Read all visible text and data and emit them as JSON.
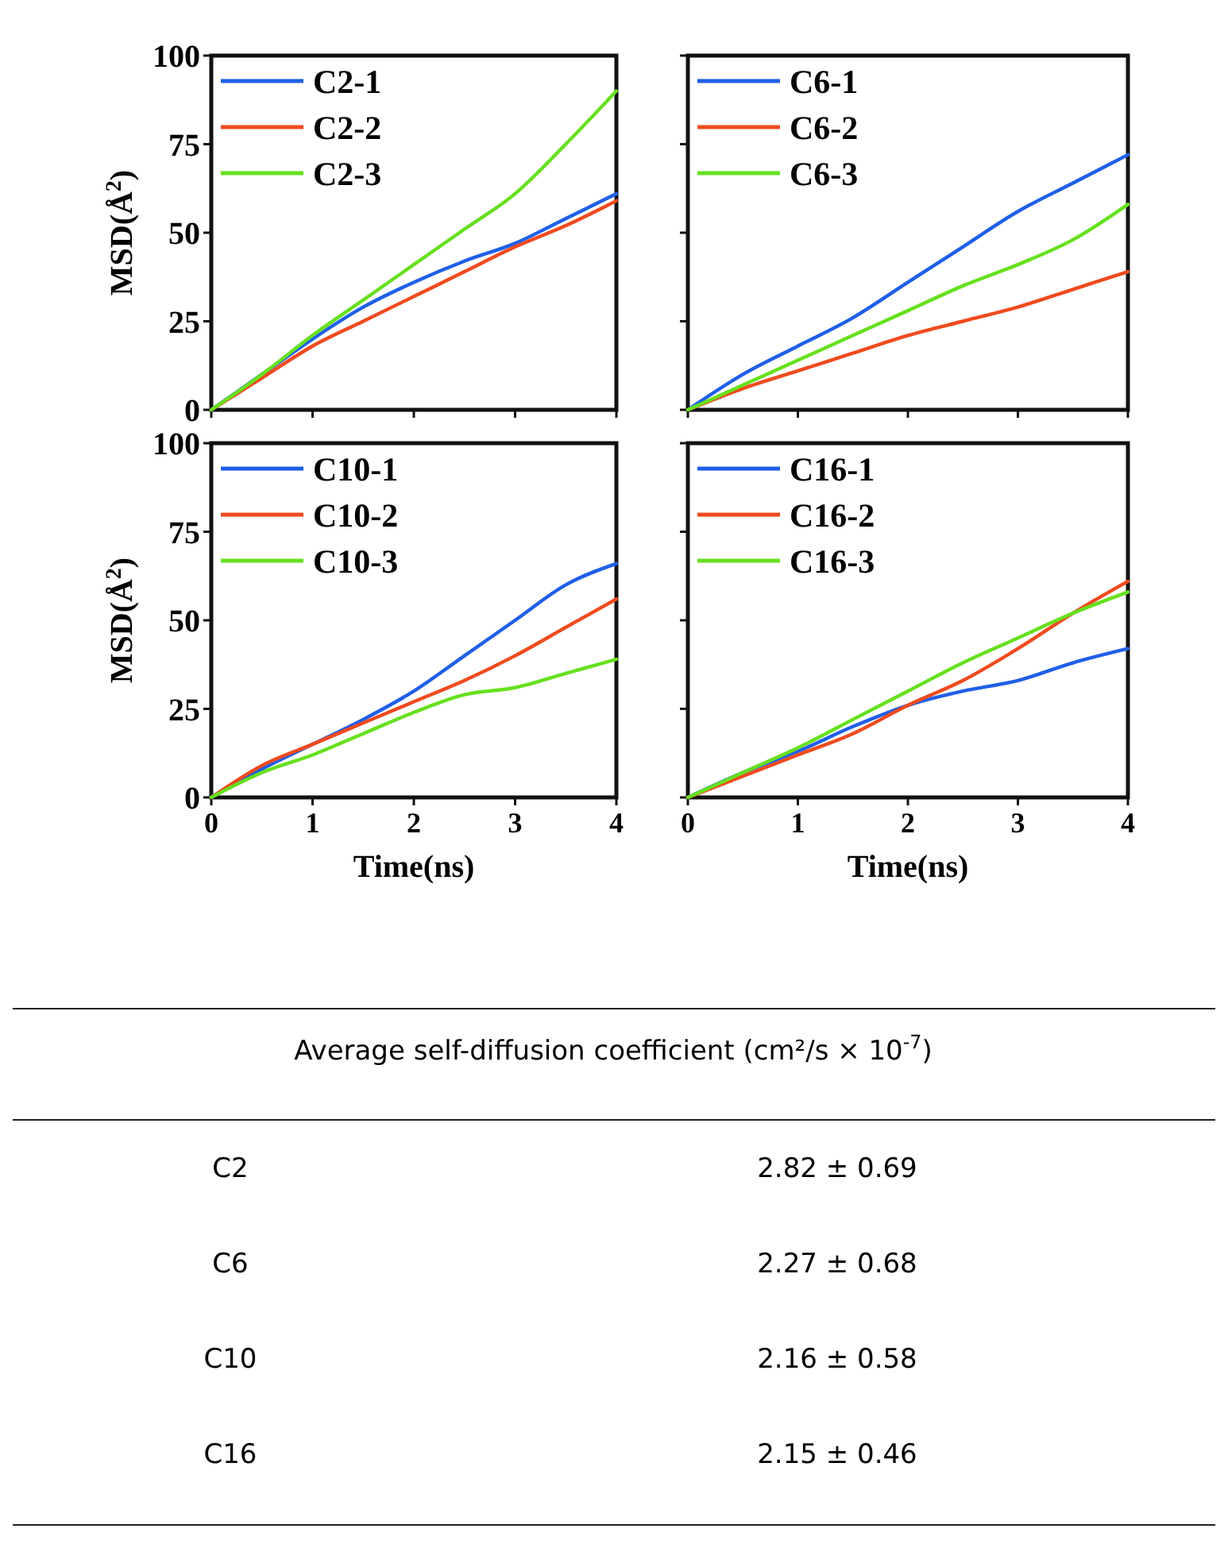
{
  "chart_data": [
    {
      "type": "line",
      "ylabel": "MSD(Å$^{2}$)",
      "x": [
        0,
        0.5,
        1,
        1.5,
        2,
        2.5,
        3,
        3.5,
        4
      ],
      "xlim": [
        0,
        4
      ],
      "xticks": [
        0,
        1,
        2,
        3,
        4
      ],
      "ylim": [
        0,
        100
      ],
      "yticks": [
        0,
        25,
        50,
        75,
        100
      ],
      "tick_labels": "y",
      "legend": "top left",
      "line_style": "solid",
      "series": [
        {
          "name": "C2-1",
          "color": "#1f5fe8",
          "values": [
            0,
            10,
            20,
            29,
            36,
            42,
            47,
            54,
            61
          ]
        },
        {
          "name": "C2-2",
          "color": "#f04a1e",
          "values": [
            0,
            9,
            18,
            25,
            32,
            39,
            46,
            52,
            59
          ]
        },
        {
          "name": "C2-3",
          "color": "#66e01e",
          "values": [
            0,
            10,
            21,
            31,
            41,
            51,
            61,
            75,
            90
          ]
        }
      ]
    },
    {
      "type": "line",
      "x": [
        0,
        0.5,
        1,
        1.5,
        2,
        2.5,
        3,
        3.5,
        4
      ],
      "xlim": [
        0,
        4
      ],
      "xticks": [
        0,
        1,
        2,
        3,
        4
      ],
      "ylim": [
        0,
        100
      ],
      "yticks": [
        0,
        25,
        50,
        75,
        100
      ],
      "tick_labels": false,
      "legend": "top left",
      "line_style": "solid",
      "series": [
        {
          "name": "C6-1",
          "color": "#1f5fe8",
          "values": [
            0,
            10,
            18,
            26,
            36,
            46,
            56,
            64,
            72
          ]
        },
        {
          "name": "C6-2",
          "color": "#f04a1e",
          "values": [
            0,
            6,
            11,
            16,
            21,
            25,
            29,
            34,
            39
          ]
        },
        {
          "name": "C6-3",
          "color": "#66e01e",
          "values": [
            0,
            7,
            14,
            21,
            28,
            35,
            41,
            48,
            58
          ]
        }
      ]
    },
    {
      "type": "line",
      "xlabel": "Time(ns)",
      "ylabel": "MSD(Å$^{2}$)",
      "x": [
        0,
        0.5,
        1,
        1.5,
        2,
        2.5,
        3,
        3.5,
        4
      ],
      "xlim": [
        0,
        4
      ],
      "xticks": [
        0,
        1,
        2,
        3,
        4
      ],
      "ylim": [
        0,
        100
      ],
      "yticks": [
        0,
        25,
        50,
        75,
        100
      ],
      "legend": "top left",
      "line_style": "solid",
      "series": [
        {
          "name": "C10-1",
          "color": "#1f5fe8",
          "values": [
            0,
            8,
            15,
            22,
            30,
            40,
            50,
            60,
            66
          ]
        },
        {
          "name": "C10-2",
          "color": "#f04a1e",
          "values": [
            0,
            9,
            15,
            21,
            27,
            33,
            40,
            48,
            56
          ]
        },
        {
          "name": "C10-3",
          "color": "#66e01e",
          "values": [
            0,
            7,
            12,
            18,
            24,
            29,
            31,
            35,
            39
          ]
        }
      ]
    },
    {
      "type": "line",
      "xlabel": "Time(ns)",
      "x": [
        0,
        0.5,
        1,
        1.5,
        2,
        2.5,
        3,
        3.5,
        4
      ],
      "xlim": [
        0,
        4
      ],
      "xticks": [
        0,
        1,
        2,
        3,
        4
      ],
      "ylim": [
        0,
        100
      ],
      "yticks": [
        0,
        25,
        50,
        75,
        100
      ],
      "tick_labels": "x",
      "legend": "top left",
      "line_style": "solid",
      "series": [
        {
          "name": "C16-1",
          "color": "#1f5fe8",
          "values": [
            0,
            7,
            13,
            20,
            26,
            30,
            33,
            38,
            42
          ]
        },
        {
          "name": "C16-2",
          "color": "#f04a1e",
          "values": [
            0,
            6,
            12,
            18,
            26,
            33,
            42,
            52,
            61
          ]
        },
        {
          "name": "C16-3",
          "color": "#66e01e",
          "values": [
            0,
            7,
            14,
            22,
            30,
            38,
            45,
            52,
            58
          ]
        }
      ]
    },
    {
      "type": "other",
      "title": "Average self-diffusion coefficient (cm²/s × 10$^{-7}$)",
      "categories": [
        "C2",
        "C6",
        "C10",
        "C16"
      ],
      "value_labels": [
        "2.82 ± 0.69",
        "2.27 ± 0.68",
        "2.16 ± 0.58",
        "2.15 ± 0.46"
      ]
    }
  ]
}
